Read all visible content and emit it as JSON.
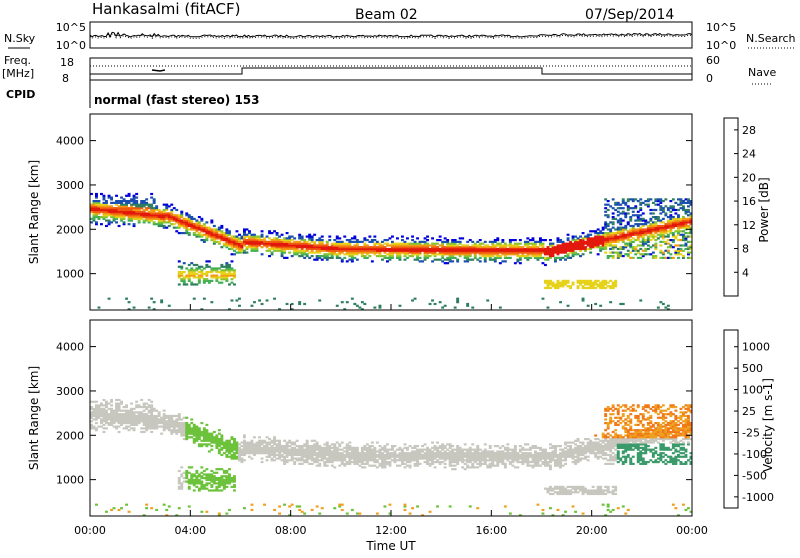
{
  "header": {
    "station": "Hankasalmi (fitACF)",
    "beam": "Beam 02",
    "date": "07/Sep/2014"
  },
  "panel_labels": {
    "nsky": "N.Sky",
    "nsearch": "N.Search",
    "freq_line1": "Freq.",
    "freq_line2": "[MHz]",
    "nave": "Nave",
    "cpid": "CPID",
    "cpid_value": "normal (fast stereo) 153"
  },
  "noise_axis": {
    "left_ticks": [
      "10^5",
      "10^0"
    ],
    "right_ticks": [
      "10^5",
      "10^0"
    ]
  },
  "freq_axis": {
    "left_ticks": [
      "18",
      "8"
    ],
    "right_ticks": [
      "60",
      "0"
    ]
  },
  "chart_data": [
    {
      "type": "heatmap",
      "name": "power",
      "ylabel": "Slant Range [km]",
      "ylim": [
        180,
        4600
      ],
      "yticks": [
        1000,
        2000,
        3000,
        4000
      ],
      "colorbar": {
        "label": "Power [dB]",
        "ticks": [
          4,
          8,
          12,
          16,
          20,
          24,
          28
        ],
        "range": [
          0,
          30
        ],
        "colors": [
          "#0000dd",
          "#1a4fb0",
          "#2f7f5f",
          "#3fae55",
          "#86c433",
          "#e6d21a",
          "#f29a14",
          "#ef5a0f",
          "#e3180c"
        ]
      }
    },
    {
      "type": "heatmap",
      "name": "velocity",
      "ylabel": "Slant Range [km]",
      "ylim": [
        180,
        4600
      ],
      "yticks": [
        1000,
        2000,
        3000,
        4000
      ],
      "colorbar": {
        "label": "Velocity [m s-1]",
        "ticks": [
          "1000",
          "500",
          "100",
          "25",
          "-25",
          "-100",
          "-500",
          "-1000"
        ],
        "colors": [
          "#1f3aa8",
          "#2f6ed0",
          "#3a9a6a",
          "#6cc23a",
          "#c7c7bf",
          "#c7c7bf",
          "#f0a020",
          "#f07818",
          "#e83010"
        ]
      }
    }
  ],
  "time_axis": {
    "label": "Time UT",
    "ticks": [
      "00:00",
      "04:00",
      "08:00",
      "12:00",
      "16:00",
      "20:00",
      "00:00"
    ],
    "range_hours": [
      0,
      24
    ]
  }
}
